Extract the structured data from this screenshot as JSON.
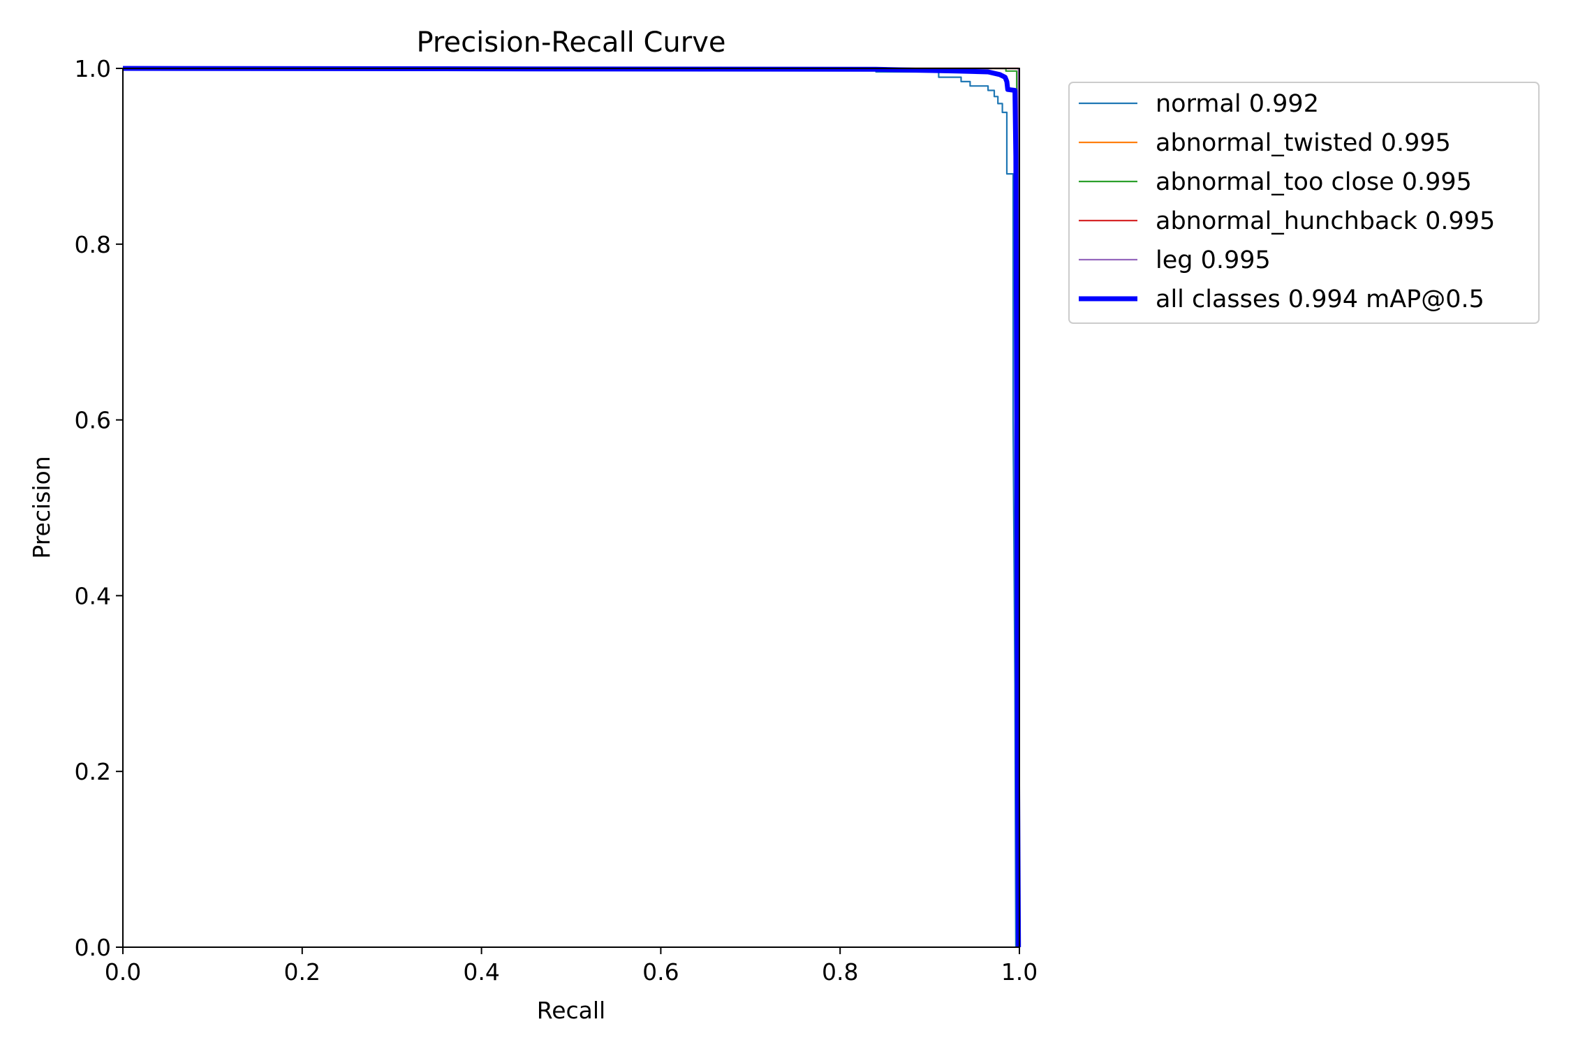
{
  "chart_data": {
    "type": "line",
    "title": "Precision-Recall Curve",
    "xlabel": "Recall",
    "ylabel": "Precision",
    "xlim": [
      0,
      1
    ],
    "ylim": [
      0,
      1
    ],
    "xticks": [
      "0.0",
      "0.2",
      "0.4",
      "0.6",
      "0.8",
      "1.0"
    ],
    "yticks": [
      "0.0",
      "0.2",
      "0.4",
      "0.6",
      "0.8",
      "1.0"
    ],
    "grid": false,
    "legend_position": "outside-right-top",
    "series": [
      {
        "name": "normal 0.992",
        "color": "#1f77b4",
        "points": [
          [
            0,
            1.0
          ],
          [
            0.84,
            1.0
          ],
          [
            0.84,
            0.996
          ],
          [
            0.91,
            0.996
          ],
          [
            0.91,
            0.99
          ],
          [
            0.935,
            0.99
          ],
          [
            0.935,
            0.985
          ],
          [
            0.945,
            0.985
          ],
          [
            0.945,
            0.98
          ],
          [
            0.965,
            0.98
          ],
          [
            0.965,
            0.975
          ],
          [
            0.972,
            0.975
          ],
          [
            0.972,
            0.968
          ],
          [
            0.976,
            0.968
          ],
          [
            0.976,
            0.96
          ],
          [
            0.981,
            0.96
          ],
          [
            0.981,
            0.95
          ],
          [
            0.986,
            0.95
          ],
          [
            0.986,
            0.88
          ],
          [
            0.993,
            0.88
          ],
          [
            0.993,
            0.6
          ],
          [
            0.995,
            0.3
          ],
          [
            0.996,
            0.0
          ]
        ]
      },
      {
        "name": "abnormal_twisted 0.995",
        "color": "#ff7f0e",
        "points": [
          [
            0,
            1.0
          ],
          [
            0.999,
            1.0
          ],
          [
            1.0,
            0.0
          ]
        ]
      },
      {
        "name": "abnormal_too close 0.995",
        "color": "#2ca02c",
        "points": [
          [
            0,
            1.0
          ],
          [
            0.985,
            1.0
          ],
          [
            0.985,
            0.997
          ],
          [
            0.997,
            0.997
          ],
          [
            0.999,
            0.0
          ]
        ]
      },
      {
        "name": "abnormal_hunchback 0.995",
        "color": "#d62728",
        "points": [
          [
            0,
            1.0
          ],
          [
            0.999,
            1.0
          ],
          [
            1.0,
            0.0
          ]
        ]
      },
      {
        "name": "leg 0.995",
        "color": "#9467bd",
        "points": [
          [
            0,
            1.0
          ],
          [
            0.999,
            1.0
          ],
          [
            1.0,
            0.0
          ]
        ]
      },
      {
        "name": "all classes 0.994 mAP@0.5",
        "color": "#0000ff",
        "bold": true,
        "points": [
          [
            0,
            1.0
          ],
          [
            0.84,
            0.999
          ],
          [
            0.93,
            0.997
          ],
          [
            0.965,
            0.996
          ],
          [
            0.978,
            0.993
          ],
          [
            0.984,
            0.99
          ],
          [
            0.986,
            0.985
          ],
          [
            0.987,
            0.976
          ],
          [
            0.995,
            0.975
          ],
          [
            0.996,
            0.9
          ],
          [
            0.997,
            0.6
          ],
          [
            0.998,
            0.2
          ],
          [
            0.999,
            0.0
          ]
        ]
      }
    ]
  }
}
